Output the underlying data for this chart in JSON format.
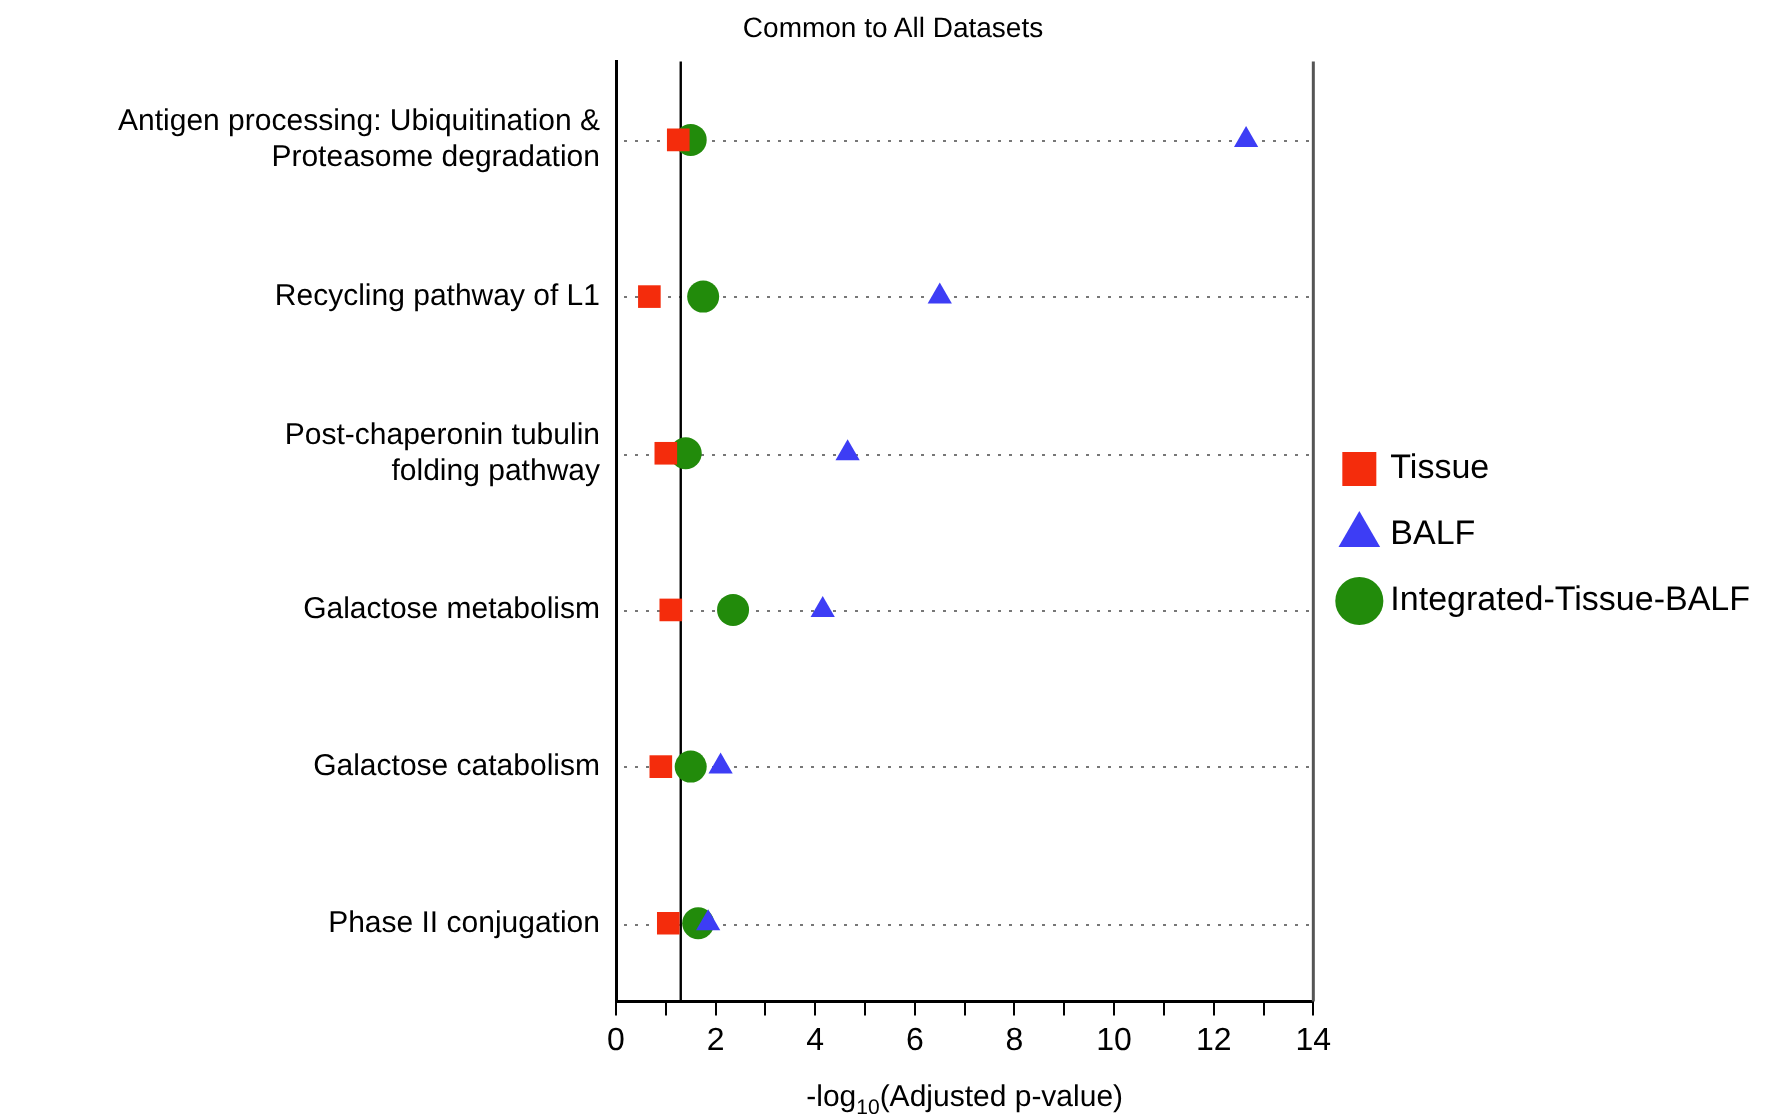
{
  "chart_data": {
    "type": "scatter",
    "title": "Common to All Datasets",
    "xlabel": "-log$_{10}$(Adjusted p-value)",
    "categories": [
      "Antigen processing: Ubiquitination &\nProteasome degradation",
      "Recycling pathway of L1",
      "Post-chaperonin tubulin\nfolding pathway",
      "Galactose metabolism",
      "Galactose catabolism",
      "Phase II conjugation"
    ],
    "orientation": "horizontal",
    "series": [
      {
        "name": "Tissue",
        "color": "#f42c0c",
        "marker": "square",
        "values": [
          1.25,
          0.67,
          1.0,
          1.1,
          0.9,
          1.05
        ]
      },
      {
        "name": "BALF",
        "color": "#3d3df5",
        "marker": "triangle",
        "values": [
          12.65,
          6.5,
          4.65,
          4.15,
          2.1,
          1.85
        ]
      },
      {
        "name": "Integrated-Tissue-BALF",
        "color": "#228b0b",
        "marker": "circle",
        "values": [
          1.5,
          1.75,
          1.4,
          2.35,
          1.5,
          1.65
        ]
      }
    ],
    "xlim": [
      0,
      14
    ],
    "xticks": [
      0,
      {
        "value": 1,
        "label": null
      },
      2,
      {
        "value": 3,
        "label": null
      },
      4,
      {
        "value": 5,
        "label": null
      },
      6,
      {
        "value": 7,
        "label": null
      },
      8,
      {
        "value": 9,
        "label": null
      },
      10,
      {
        "value": 11,
        "label": null
      },
      12,
      {
        "value": 13,
        "label": null
      },
      14
    ],
    "ref_lines": [
      {
        "axis": "x",
        "value": 1.3,
        "color": "#000000"
      }
    ],
    "grid": "y",
    "legend": "right"
  }
}
